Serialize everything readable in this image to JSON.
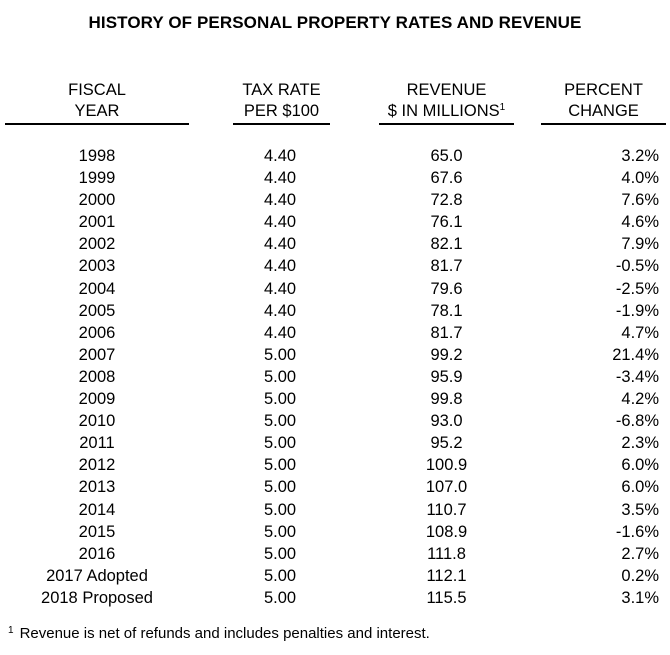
{
  "title": "HISTORY OF PERSONAL PROPERTY RATES AND REVENUE",
  "headers": {
    "year": {
      "line1": "FISCAL",
      "line2": "YEAR"
    },
    "rate": {
      "line1": "TAX RATE",
      "line2": "PER $100"
    },
    "revenue": {
      "line1": "REVENUE",
      "line2": "$ IN MILLIONS",
      "sup": "1"
    },
    "percent": {
      "line1": "PERCENT",
      "line2": "CHANGE"
    }
  },
  "rows": [
    {
      "year": "1998",
      "rate": "4.40",
      "revenue": "65.0",
      "change": "3.2%"
    },
    {
      "year": "1999",
      "rate": "4.40",
      "revenue": "67.6",
      "change": "4.0%"
    },
    {
      "year": "2000",
      "rate": "4.40",
      "revenue": "72.8",
      "change": "7.6%"
    },
    {
      "year": "2001",
      "rate": "4.40",
      "revenue": "76.1",
      "change": "4.6%"
    },
    {
      "year": "2002",
      "rate": "4.40",
      "revenue": "82.1",
      "change": "7.9%"
    },
    {
      "year": "2003",
      "rate": "4.40",
      "revenue": "81.7",
      "change": "-0.5%"
    },
    {
      "year": "2004",
      "rate": "4.40",
      "revenue": "79.6",
      "change": "-2.5%"
    },
    {
      "year": "2005",
      "rate": "4.40",
      "revenue": "78.1",
      "change": "-1.9%"
    },
    {
      "year": "2006",
      "rate": "4.40",
      "revenue": "81.7",
      "change": "4.7%"
    },
    {
      "year": "2007",
      "rate": "5.00",
      "revenue": "99.2",
      "change": "21.4%"
    },
    {
      "year": "2008",
      "rate": "5.00",
      "revenue": "95.9",
      "change": "-3.4%"
    },
    {
      "year": "2009",
      "rate": "5.00",
      "revenue": "99.8",
      "change": "4.2%"
    },
    {
      "year": "2010",
      "rate": "5.00",
      "revenue": "93.0",
      "change": "-6.8%"
    },
    {
      "year": "2011",
      "rate": "5.00",
      "revenue": "95.2",
      "change": "2.3%"
    },
    {
      "year": "2012",
      "rate": "5.00",
      "revenue": "100.9",
      "change": "6.0%"
    },
    {
      "year": "2013",
      "rate": "5.00",
      "revenue": "107.0",
      "change": "6.0%"
    },
    {
      "year": "2014",
      "rate": "5.00",
      "revenue": "110.7",
      "change": "3.5%"
    },
    {
      "year": "2015",
      "rate": "5.00",
      "revenue": "108.9",
      "change": "-1.6%"
    },
    {
      "year": "2016",
      "rate": "5.00",
      "revenue": "111.8",
      "change": "2.7%"
    },
    {
      "year": "2017 Adopted",
      "rate": "5.00",
      "revenue": "112.1",
      "change": "0.2%"
    },
    {
      "year": "2018 Proposed",
      "rate": "5.00",
      "revenue": "115.5",
      "change": "3.1%"
    }
  ],
  "footnote": {
    "marker": "1",
    "text": "Revenue is net of refunds and includes penalties and interest."
  }
}
